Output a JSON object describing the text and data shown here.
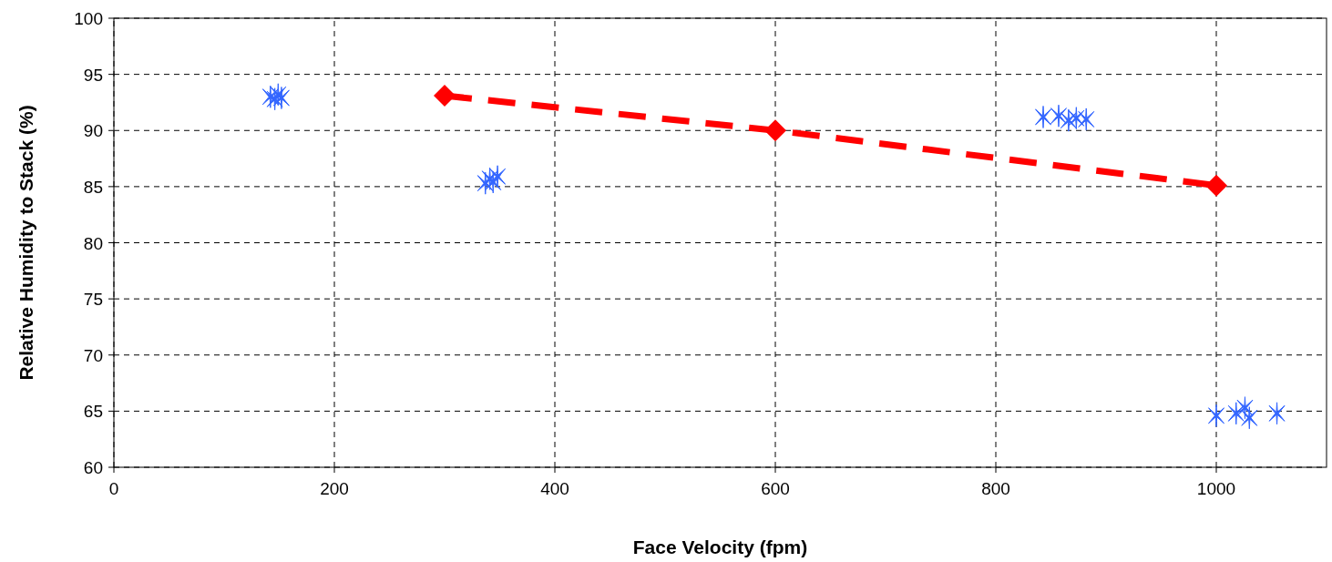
{
  "chart_data": {
    "type": "scatter",
    "xlabel": "Face Velocity (fpm)",
    "ylabel": "Relative Humidity to Stack (%)",
    "xlim": [
      0,
      1100
    ],
    "xticks": [
      0,
      200,
      400,
      600,
      800,
      1000
    ],
    "ylim": [
      60,
      100
    ],
    "yticks": [
      60,
      65,
      70,
      75,
      80,
      85,
      90,
      95,
      100
    ],
    "grid": true,
    "series": [
      {
        "marker": "cross",
        "color": "#3366ff",
        "x": [
          142,
          146,
          149,
          152,
          337,
          341,
          344,
          348,
          843,
          857,
          866,
          873,
          882,
          1000,
          1018,
          1026,
          1030,
          1055
        ],
        "values": [
          93.0,
          92.8,
          93.2,
          92.9,
          85.3,
          85.7,
          85.4,
          85.9,
          91.2,
          91.3,
          90.9,
          91.1,
          91.0,
          64.6,
          64.8,
          65.3,
          64.4,
          64.8
        ]
      },
      {
        "type": "line",
        "marker": "diamond",
        "line_style": "dashed",
        "color": "#ff0000",
        "x": [
          300,
          600,
          1000
        ],
        "values": [
          93.1,
          90.0,
          85.1
        ]
      }
    ]
  }
}
